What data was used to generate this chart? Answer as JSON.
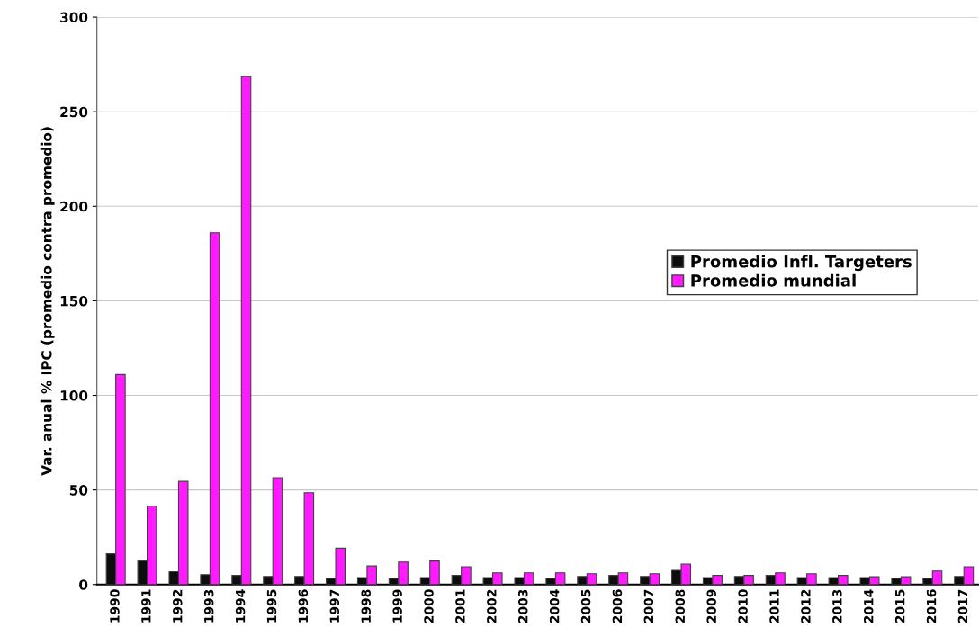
{
  "chart_data": {
    "type": "bar",
    "ylabel": "Var. anual % IPC (promedio contra promedio)",
    "categories": [
      "1990",
      "1991",
      "1992",
      "1993",
      "1994",
      "1995",
      "1996",
      "1997",
      "1998",
      "1999",
      "2000",
      "2001",
      "2002",
      "2003",
      "2004",
      "2005",
      "2006",
      "2007",
      "2008",
      "2009",
      "2010",
      "2011",
      "2012",
      "2013",
      "2014",
      "2015",
      "2016",
      "2017"
    ],
    "series": [
      {
        "name": "Promedio Infl. Targeters",
        "color": "#0d0d0d",
        "values": [
          16.2,
          12.5,
          6.8,
          5.2,
          4.8,
          4.3,
          4.3,
          3.2,
          3.7,
          3.2,
          3.7,
          4.8,
          3.7,
          3.7,
          3.2,
          4.3,
          4.8,
          4.3,
          7.5,
          3.7,
          4.3,
          4.8,
          3.7,
          3.7,
          3.7,
          3.2,
          3.2,
          4.3
        ]
      },
      {
        "name": "Promedio mundial",
        "color": "#ff1aff",
        "values": [
          111,
          41.5,
          54.5,
          186,
          268.5,
          56.5,
          48.5,
          19.2,
          9.8,
          11.9,
          12.4,
          9.4,
          6.2,
          6.2,
          6.2,
          5.7,
          6.2,
          5.7,
          10.8,
          4.8,
          4.8,
          6.2,
          5.7,
          4.8,
          4.1,
          4.1,
          7.1,
          9.4
        ]
      }
    ],
    "ylim": [
      0,
      300
    ],
    "yticks": [
      0,
      50,
      100,
      150,
      200,
      250,
      300
    ],
    "grid": "y",
    "legend": "right"
  }
}
